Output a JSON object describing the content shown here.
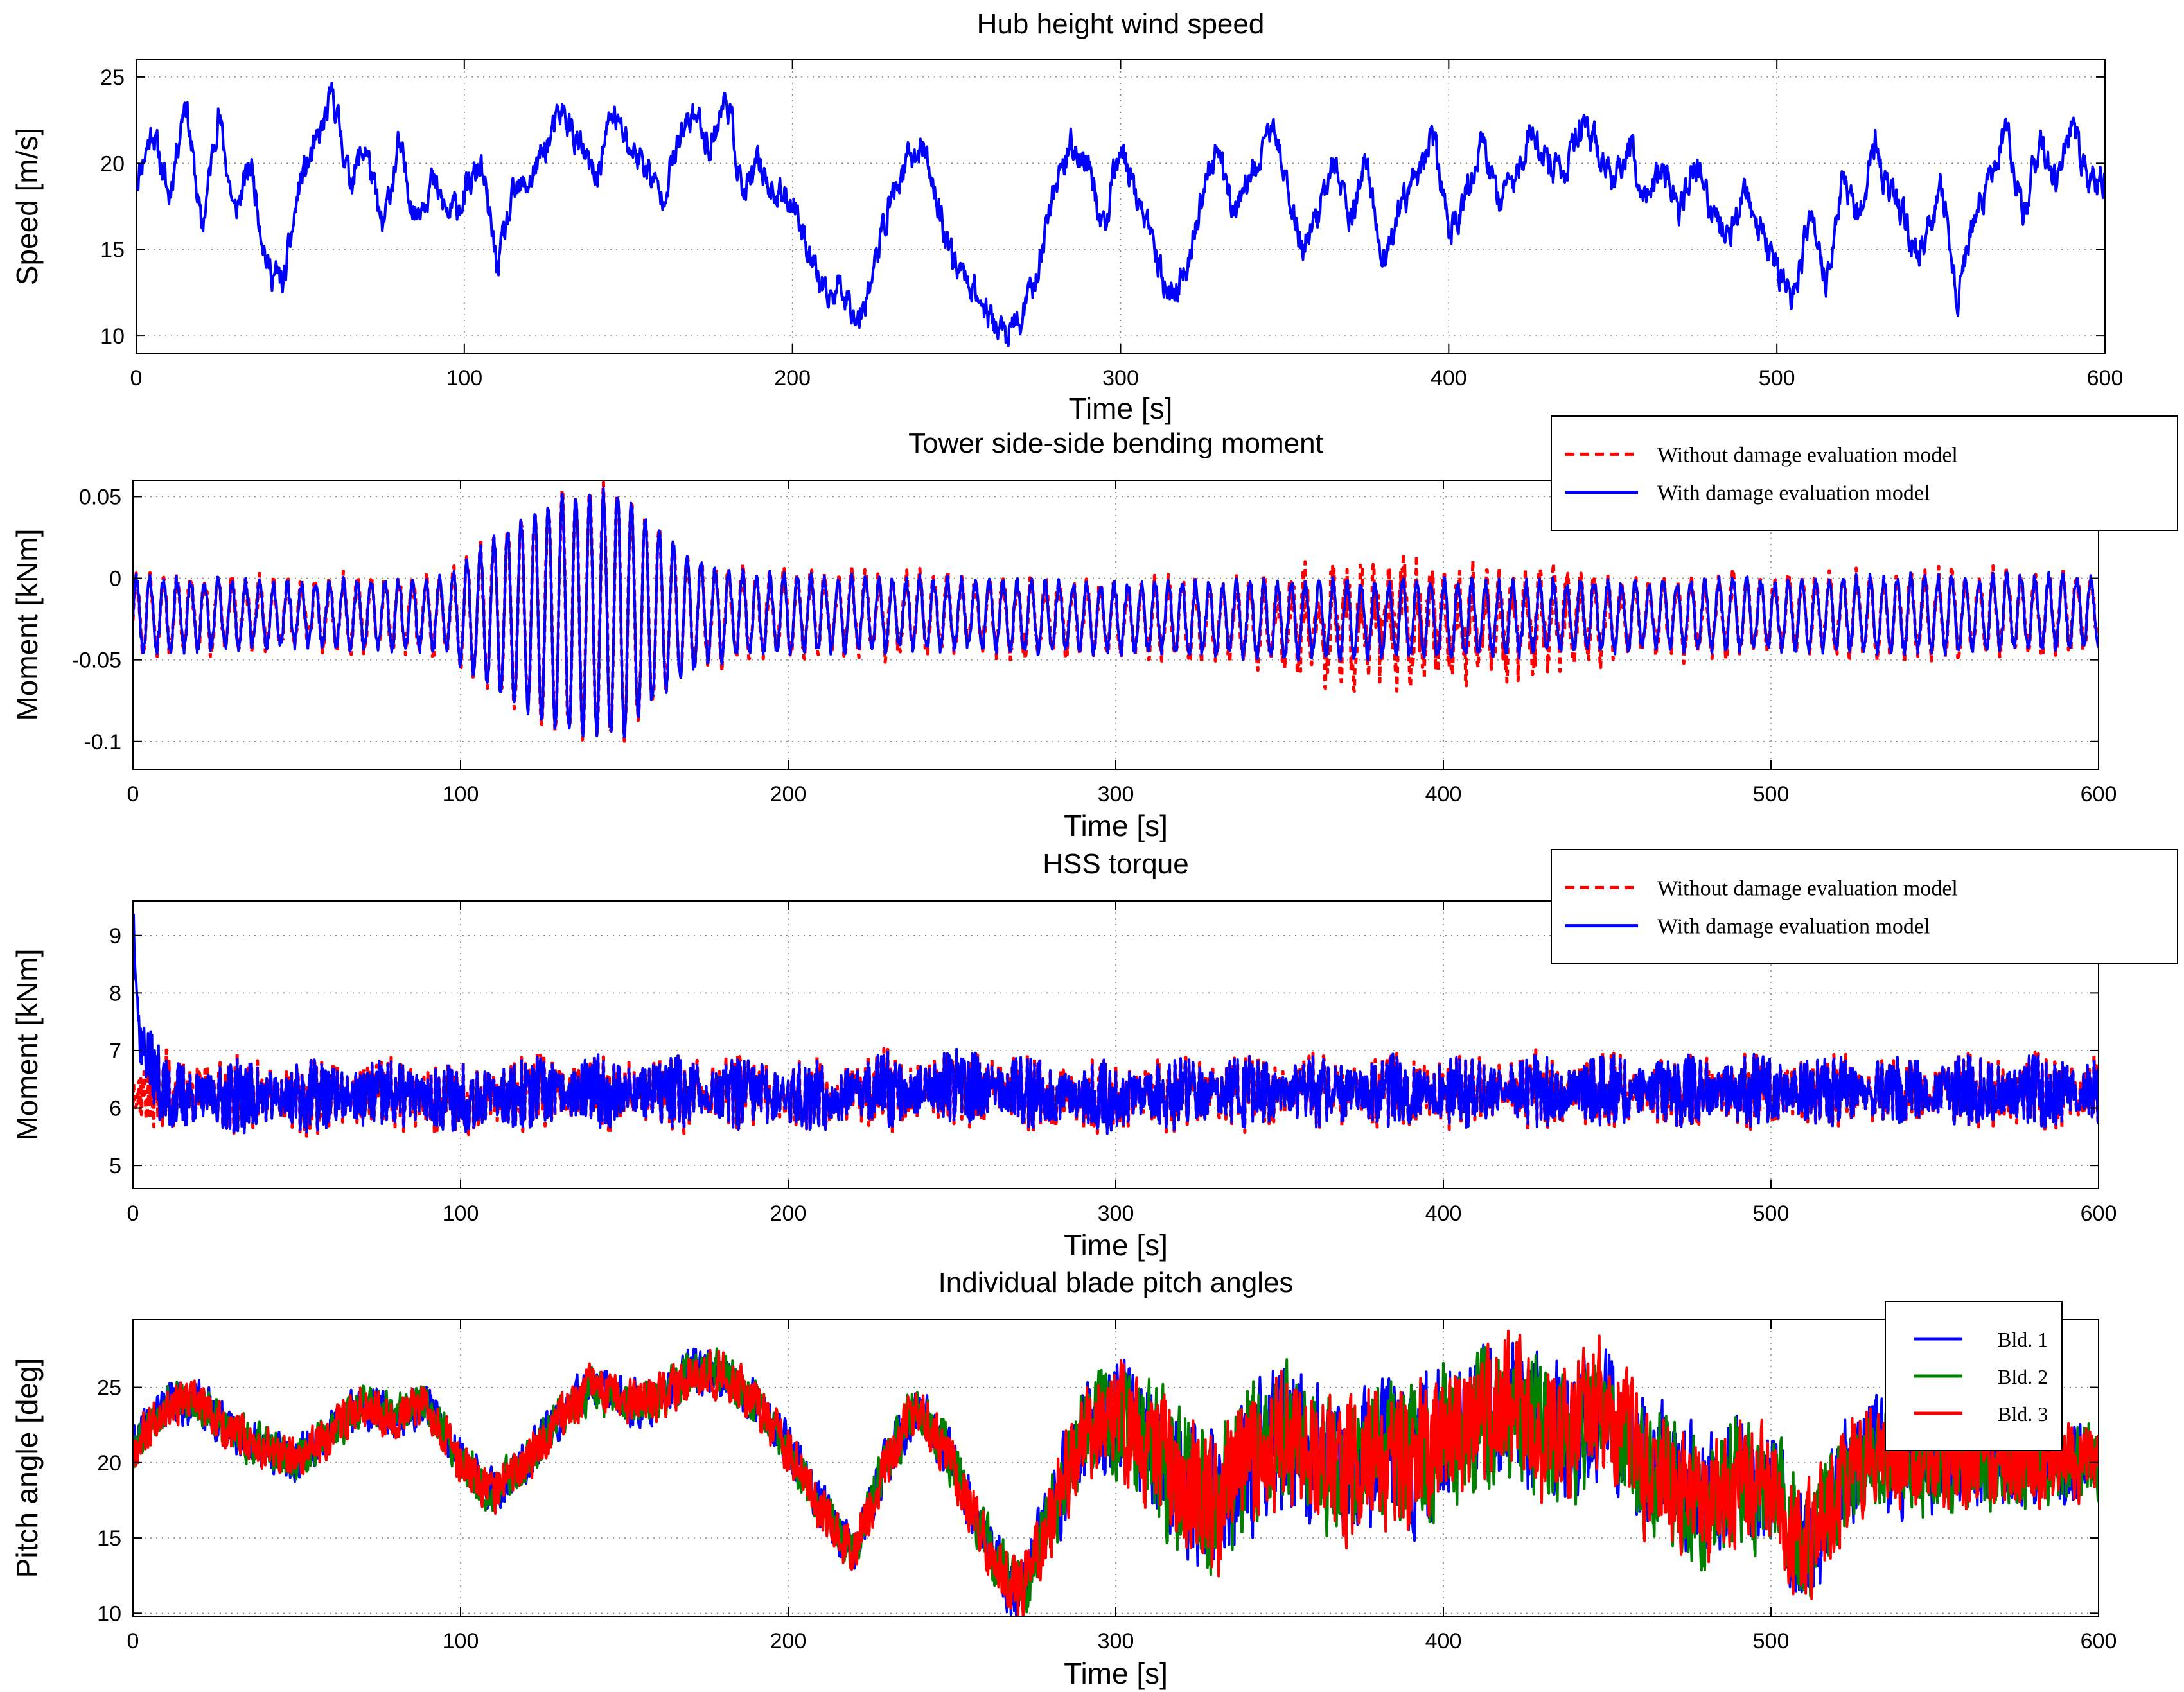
{
  "chart_data": [
    {
      "type": "line",
      "title": "Hub height wind speed",
      "xlabel": "Time [s]",
      "ylabel": "Speed [m/s]",
      "xlim": [
        0,
        600
      ],
      "ylim": [
        9,
        26
      ],
      "xticks": [
        0,
        100,
        200,
        300,
        400,
        500,
        600
      ],
      "xtick_labels": [
        "0",
        "100",
        "200",
        "300",
        "400",
        "500",
        "600"
      ],
      "yticks": [
        10,
        15,
        20,
        25
      ],
      "ytick_labels": [
        "10",
        "15",
        "20",
        "25"
      ],
      "grid": true,
      "legend": null,
      "noise": 0.7,
      "seed": 11,
      "series": [
        {
          "name": "Hub height wind speed",
          "color": "#0000ff",
          "style": "solid",
          "x": [
            0,
            5,
            10,
            15,
            20,
            25,
            30,
            35,
            40,
            45,
            50,
            55,
            60,
            65,
            70,
            75,
            80,
            85,
            90,
            95,
            100,
            105,
            110,
            115,
            120,
            125,
            130,
            135,
            140,
            145,
            150,
            155,
            160,
            165,
            170,
            175,
            180,
            185,
            190,
            195,
            200,
            205,
            210,
            215,
            220,
            225,
            230,
            235,
            240,
            245,
            250,
            255,
            260,
            265,
            270,
            275,
            280,
            285,
            290,
            295,
            300,
            305,
            310,
            315,
            320,
            325,
            330,
            335,
            340,
            345,
            350,
            355,
            360,
            365,
            370,
            375,
            380,
            385,
            390,
            395,
            400,
            405,
            410,
            415,
            420,
            425,
            430,
            435,
            440,
            445,
            450,
            455,
            460,
            465,
            470,
            475,
            480,
            485,
            490,
            495,
            500,
            505,
            510,
            515,
            520,
            525,
            530,
            535,
            540,
            545,
            550,
            555,
            560,
            565,
            570,
            575,
            580,
            585,
            590,
            595,
            600
          ],
          "values": [
            19,
            22,
            18,
            24,
            16,
            23,
            17,
            20,
            14,
            13,
            19,
            21,
            24,
            19,
            21,
            16,
            21,
            17,
            19,
            17,
            18,
            20,
            14,
            18,
            19,
            21,
            23,
            21,
            19,
            23,
            21,
            20,
            18,
            21,
            23,
            21,
            24,
            18,
            20,
            18,
            18,
            15,
            12,
            13,
            11,
            14,
            18,
            20,
            21,
            17,
            14,
            13,
            11,
            10,
            11,
            14,
            19,
            21,
            20,
            16,
            21,
            18,
            15,
            12,
            14,
            18,
            21,
            17,
            19,
            22,
            20,
            15,
            17,
            20,
            17,
            20,
            14,
            17,
            19,
            22,
            16,
            18,
            21,
            18,
            19,
            22,
            20,
            19,
            22,
            21,
            19,
            21,
            18,
            20,
            17,
            20,
            17,
            16,
            18,
            16,
            14,
            12,
            17,
            13,
            19,
            17,
            21,
            18,
            16,
            15,
            19,
            12,
            17,
            19,
            22,
            17,
            21,
            19,
            22,
            19,
            19
          ]
        }
      ]
    },
    {
      "type": "line",
      "title": "Tower side-side bending moment",
      "xlabel": "Time [s]",
      "ylabel": "Moment [kNm]",
      "xlim": [
        0,
        600
      ],
      "ylim": [
        -0.117,
        0.06
      ],
      "xticks": [
        0,
        100,
        200,
        300,
        400,
        500,
        600
      ],
      "xtick_labels": [
        "0",
        "100",
        "200",
        "300",
        "400",
        "500",
        "600"
      ],
      "yticks": [
        -0.1,
        -0.05,
        0,
        0.05
      ],
      "ytick_labels": [
        "-0.1",
        "-0.05",
        "0",
        "0.05"
      ],
      "grid": true,
      "legend": "top-right",
      "noise": 0.004,
      "seed": 23,
      "oscillation": {
        "period": 4.2,
        "x": [
          0,
          50,
          95,
          110,
          130,
          150,
          160,
          175,
          200,
          250,
          300,
          350,
          400,
          450,
          500,
          550,
          600
        ],
        "amplitude": [
          0.022,
          0.018,
          0.022,
          0.045,
          0.07,
          0.075,
          0.05,
          0.028,
          0.022,
          0.02,
          0.02,
          0.022,
          0.022,
          0.02,
          0.02,
          0.022,
          0.02
        ]
      },
      "series": [
        {
          "name": "Without damage evaluation model",
          "color": "#ff0000",
          "style": "dashed",
          "x": [
            0,
            50,
            100,
            150,
            200,
            250,
            300,
            350,
            400,
            450,
            500,
            550,
            600
          ],
          "values": [
            -0.022,
            -0.022,
            -0.022,
            -0.022,
            -0.022,
            -0.022,
            -0.025,
            -0.028,
            -0.028,
            -0.025,
            -0.022,
            -0.022,
            -0.02
          ],
          "extra_amplitude": {
            "x": [
              0,
              340,
              360,
              380,
              400,
              430,
              460,
              600
            ],
            "values": [
              0.004,
              0.006,
              0.02,
              0.025,
              0.02,
              0.015,
              0.006,
              0.005
            ]
          }
        },
        {
          "name": "With damage evaluation model",
          "color": "#0000ff",
          "style": "solid",
          "x": [
            0,
            50,
            100,
            150,
            200,
            250,
            300,
            350,
            400,
            450,
            500,
            550,
            600
          ],
          "values": [
            -0.022,
            -0.022,
            -0.022,
            -0.022,
            -0.022,
            -0.022,
            -0.024,
            -0.025,
            -0.025,
            -0.023,
            -0.022,
            -0.022,
            -0.02
          ],
          "extra_amplitude": {
            "x": [
              0,
              600
            ],
            "values": [
              0,
              0
            ]
          }
        }
      ]
    },
    {
      "type": "line",
      "title": "HSS torque",
      "xlabel": "Time [s]",
      "ylabel": "Moment [kNm]",
      "xlim": [
        0,
        600
      ],
      "ylim": [
        4.6,
        9.6
      ],
      "xticks": [
        0,
        100,
        200,
        300,
        400,
        500,
        600
      ],
      "xtick_labels": [
        "0",
        "100",
        "200",
        "300",
        "400",
        "500",
        "600"
      ],
      "yticks": [
        5,
        6,
        7,
        8,
        9
      ],
      "ytick_labels": [
        "5",
        "6",
        "7",
        "8",
        "9"
      ],
      "grid": true,
      "legend": "top-right",
      "noise": 0.55,
      "seed": 37,
      "series": [
        {
          "name": "Without damage evaluation model",
          "color": "#ff0000",
          "style": "dashed",
          "x": [
            0,
            50,
            100,
            150,
            200,
            250,
            300,
            350,
            400,
            450,
            500,
            550,
            600
          ],
          "values": [
            6.3,
            6.2,
            6.2,
            6.3,
            6.2,
            6.4,
            6.2,
            6.3,
            6.3,
            6.3,
            6.3,
            6.3,
            6.3
          ],
          "extra_amplitude": {
            "x": [
              0,
              600
            ],
            "values": [
              0.12,
              0.12
            ]
          }
        },
        {
          "name": "With damage evaluation model",
          "color": "#0000ff",
          "style": "solid",
          "x": [
            0,
            2,
            10,
            50,
            100,
            150,
            200,
            250,
            300,
            350,
            400,
            450,
            500,
            550,
            600
          ],
          "values": [
            9.5,
            7.2,
            6.2,
            6.2,
            6.2,
            6.3,
            6.2,
            6.4,
            6.2,
            6.3,
            6.3,
            6.3,
            6.3,
            6.3,
            6.3
          ],
          "extra_amplitude": {
            "x": [
              0,
              600
            ],
            "values": [
              0,
              0
            ]
          }
        }
      ]
    },
    {
      "type": "line",
      "title": "Individual blade pitch angles",
      "xlabel": "Time [s]",
      "ylabel": "Pitch angle [deg]",
      "xlim": [
        0,
        600
      ],
      "ylim": [
        9.8,
        29.5
      ],
      "xticks": [
        0,
        100,
        200,
        300,
        400,
        500,
        600
      ],
      "xtick_labels": [
        "0",
        "100",
        "200",
        "300",
        "400",
        "500",
        "600"
      ],
      "yticks": [
        10,
        15,
        20,
        25
      ],
      "ytick_labels": [
        "10",
        "15",
        "20",
        "25"
      ],
      "grid": true,
      "legend": "top-right",
      "base": {
        "x": [
          0,
          10,
          20,
          30,
          40,
          50,
          60,
          70,
          80,
          90,
          100,
          110,
          120,
          130,
          140,
          150,
          160,
          170,
          180,
          190,
          200,
          210,
          220,
          230,
          240,
          250,
          260,
          270,
          280,
          290,
          300,
          310,
          320,
          330,
          340,
          350,
          360,
          370,
          380,
          390,
          400,
          410,
          420,
          430,
          440,
          450,
          460,
          470,
          480,
          490,
          500,
          510,
          520,
          530,
          540,
          550,
          560,
          570,
          580,
          590,
          600
        ],
        "values": [
          21,
          24,
          24,
          22,
          21,
          20,
          22,
          24,
          23,
          24,
          20,
          18,
          20,
          23,
          25,
          24,
          24,
          26,
          26,
          24,
          21,
          17,
          14,
          20,
          24,
          20,
          15,
          11,
          16,
          22,
          23,
          21,
          19,
          17,
          20,
          22,
          21,
          19,
          21,
          20,
          22,
          23,
          24,
          22,
          22,
          24,
          20,
          19,
          17,
          19,
          18,
          14,
          18,
          21,
          20,
          20,
          20,
          20,
          20,
          20,
          20
        ]
      },
      "noise_envelope": {
        "x": [
          0,
          100,
          200,
          260,
          290,
          320,
          400,
          500,
          550,
          600
        ],
        "values": [
          1.3,
          1.3,
          1.4,
          1.6,
          3.0,
          4.2,
          4.2,
          3.6,
          3.0,
          2.2
        ]
      },
      "series": [
        {
          "name": "Bld. 1",
          "color": "#0000ff",
          "style": "solid",
          "seed": 41
        },
        {
          "name": "Bld. 2",
          "color": "#008000",
          "style": "solid",
          "seed": 53
        },
        {
          "name": "Bld. 3",
          "color": "#ff0000",
          "style": "solid",
          "seed": 67
        }
      ]
    }
  ]
}
